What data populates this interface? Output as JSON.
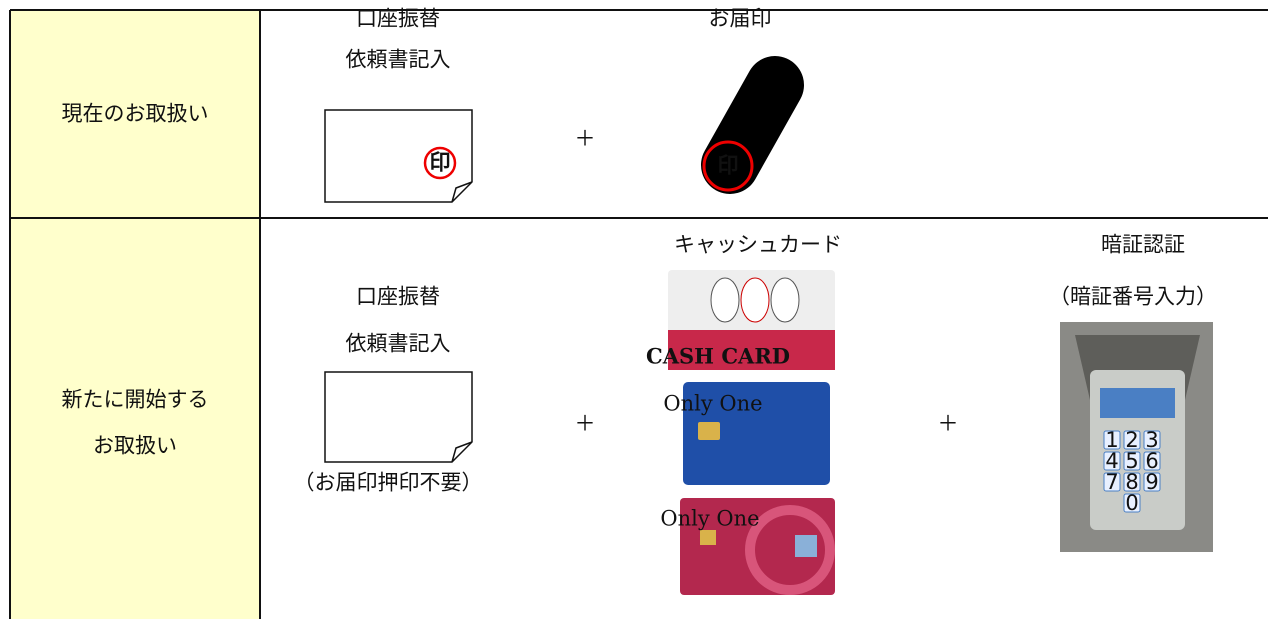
{
  "row1": {
    "label": [
      "現在のお取扱い"
    ],
    "form_lines": [
      "口座振替",
      "依頼書記入"
    ],
    "stamp_char": "印",
    "plus": "＋",
    "seal_title": "お届印",
    "seal_char": "印"
  },
  "row2": {
    "label": [
      "新たに開始する",
      "お取扱い"
    ],
    "form_lines": [
      "口座振替",
      "依頼書記入"
    ],
    "form_note": "（お届印押印不要）",
    "plus": [
      "＋",
      "＋"
    ],
    "card_title": "キャッシュカード",
    "cards": [
      "CASH CARD",
      "Only One",
      "Only One"
    ],
    "pin_title": [
      "暗証認証",
      "（暗証番号入力）"
    ],
    "keypad": [
      "1",
      "2",
      "3",
      "4",
      "5",
      "6",
      "7",
      "8",
      "9",
      "0"
    ]
  }
}
